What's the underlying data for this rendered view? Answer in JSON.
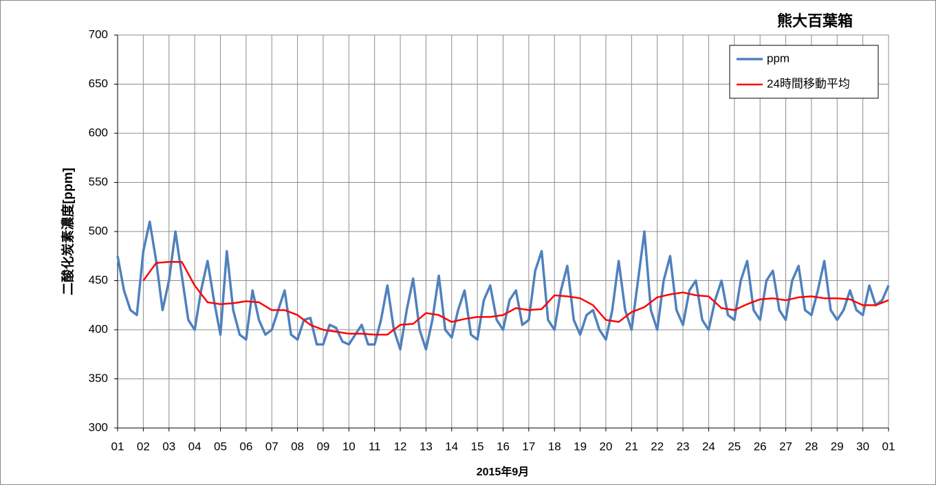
{
  "chart_data": {
    "type": "line",
    "title": "熊大百葉箱",
    "x_label": "2015年9月",
    "y_label": "二酸化炭素濃度[ppm]",
    "xlim": [
      0,
      30
    ],
    "xticks": [
      {
        "value": 0,
        "label": "01"
      },
      {
        "value": 1,
        "label": "02"
      },
      {
        "value": 2,
        "label": "03"
      },
      {
        "value": 3,
        "label": "04"
      },
      {
        "value": 4,
        "label": "05"
      },
      {
        "value": 5,
        "label": "06"
      },
      {
        "value": 6,
        "label": "07"
      },
      {
        "value": 7,
        "label": "08"
      },
      {
        "value": 8,
        "label": "09"
      },
      {
        "value": 9,
        "label": "10"
      },
      {
        "value": 10,
        "label": "11"
      },
      {
        "value": 11,
        "label": "12"
      },
      {
        "value": 12,
        "label": "13"
      },
      {
        "value": 13,
        "label": "14"
      },
      {
        "value": 14,
        "label": "15"
      },
      {
        "value": 15,
        "label": "16"
      },
      {
        "value": 16,
        "label": "17"
      },
      {
        "value": 17,
        "label": "18"
      },
      {
        "value": 18,
        "label": "19"
      },
      {
        "value": 19,
        "label": "20"
      },
      {
        "value": 20,
        "label": "21"
      },
      {
        "value": 21,
        "label": "22"
      },
      {
        "value": 22,
        "label": "23"
      },
      {
        "value": 23,
        "label": "24"
      },
      {
        "value": 24,
        "label": "25"
      },
      {
        "value": 25,
        "label": "26"
      },
      {
        "value": 26,
        "label": "27"
      },
      {
        "value": 27,
        "label": "28"
      },
      {
        "value": 28,
        "label": "29"
      },
      {
        "value": 29,
        "label": "30"
      },
      {
        "value": 30,
        "label": "01"
      }
    ],
    "ylim": [
      300,
      700
    ],
    "yticks": [
      300,
      350,
      400,
      450,
      500,
      550,
      600,
      650,
      700
    ],
    "grid": true,
    "legend": "upper right",
    "series": [
      {
        "name": "ppm",
        "color": "#4f81bd",
        "width": 3.5,
        "x": [
          0,
          0.25,
          0.5,
          0.75,
          1,
          1.25,
          1.5,
          1.75,
          2,
          2.25,
          2.5,
          2.75,
          3,
          3.25,
          3.5,
          3.75,
          4,
          4.25,
          4.5,
          4.75,
          5,
          5.25,
          5.5,
          5.75,
          6,
          6.25,
          6.5,
          6.75,
          7,
          7.25,
          7.5,
          7.75,
          8,
          8.25,
          8.5,
          8.75,
          9,
          9.25,
          9.5,
          9.75,
          10,
          10.25,
          10.5,
          10.75,
          11,
          11.25,
          11.5,
          11.75,
          12,
          12.25,
          12.5,
          12.75,
          13,
          13.25,
          13.5,
          13.75,
          14,
          14.25,
          14.5,
          14.75,
          15,
          15.25,
          15.5,
          15.75,
          16,
          16.25,
          16.5,
          16.75,
          17,
          17.25,
          17.5,
          17.75,
          18,
          18.25,
          18.5,
          18.75,
          19,
          19.25,
          19.5,
          19.75,
          20,
          20.25,
          20.5,
          20.75,
          21,
          21.25,
          21.5,
          21.75,
          22,
          22.25,
          22.5,
          22.75,
          23,
          23.25,
          23.5,
          23.75,
          24,
          24.25,
          24.5,
          24.75,
          25,
          25.25,
          25.5,
          25.75,
          26,
          26.25,
          26.5,
          26.75,
          27,
          27.25,
          27.5,
          27.75,
          28,
          28.25,
          28.5,
          28.75,
          29,
          29.25,
          29.5,
          29.75,
          30
        ],
        "values": [
          475,
          440,
          420,
          415,
          480,
          510,
          470,
          420,
          450,
          500,
          455,
          410,
          400,
          440,
          470,
          430,
          395,
          480,
          420,
          395,
          390,
          440,
          410,
          395,
          400,
          420,
          440,
          395,
          390,
          410,
          412,
          385,
          385,
          405,
          402,
          388,
          385,
          395,
          405,
          385,
          385,
          410,
          445,
          400,
          380,
          420,
          452,
          400,
          380,
          410,
          455,
          400,
          392,
          420,
          440,
          395,
          390,
          430,
          445,
          410,
          400,
          430,
          440,
          405,
          410,
          460,
          480,
          410,
          400,
          440,
          465,
          410,
          395,
          415,
          420,
          400,
          390,
          420,
          470,
          420,
          400,
          450,
          500,
          420,
          400,
          450,
          475,
          420,
          405,
          440,
          450,
          410,
          400,
          430,
          450,
          415,
          410,
          450,
          470,
          420,
          410,
          450,
          460,
          420,
          410,
          450,
          465,
          420,
          415,
          440,
          470,
          420,
          410,
          420,
          440,
          420,
          415,
          445,
          425,
          430,
          445
        ]
      },
      {
        "name": "24時間移動平均",
        "color": "#ff0000",
        "width": 2.5,
        "x": [
          1,
          1.5,
          2,
          2.5,
          3,
          3.5,
          4,
          4.5,
          5,
          5.5,
          6,
          6.5,
          7,
          7.5,
          8,
          8.5,
          9,
          9.5,
          10,
          10.5,
          11,
          11.5,
          12,
          12.5,
          13,
          13.5,
          14,
          14.5,
          15,
          15.5,
          16,
          16.5,
          17,
          17.5,
          18,
          18.5,
          19,
          19.5,
          20,
          20.5,
          21,
          21.5,
          22,
          22.5,
          23,
          23.5,
          24,
          24.5,
          25,
          25.5,
          26,
          26.5,
          27,
          27.5,
          28,
          28.5,
          29,
          29.5,
          30
        ],
        "values": [
          450,
          468,
          469,
          469,
          445,
          428,
          426,
          427,
          429,
          428,
          420,
          420,
          415,
          405,
          400,
          398,
          396,
          396,
          395,
          395,
          405,
          406,
          417,
          415,
          408,
          411,
          413,
          413,
          415,
          422,
          420,
          421,
          435,
          434,
          432,
          425,
          410,
          408,
          418,
          423,
          433,
          436,
          438,
          435,
          434,
          422,
          420,
          426,
          431,
          432,
          430,
          433,
          434,
          432,
          432,
          431,
          425,
          425,
          430
        ]
      }
    ]
  }
}
